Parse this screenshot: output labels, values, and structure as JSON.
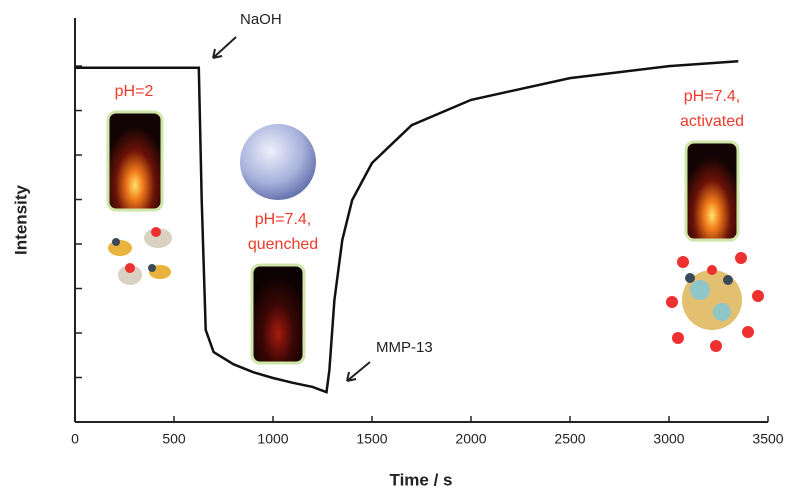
{
  "chart_data": {
    "type": "line",
    "x_label": "Time / s",
    "y_label": "Intensity",
    "x": [
      0,
      600,
      625,
      640,
      660,
      700,
      800,
      900,
      1000,
      1100,
      1200,
      1270,
      1285,
      1310,
      1350,
      1400,
      1500,
      1700,
      2000,
      2500,
      3000,
      3350
    ],
    "values": [
      7.96,
      7.96,
      7.96,
      4.99,
      2.07,
      1.57,
      1.3,
      1.12,
      0.99,
      0.88,
      0.79,
      0.67,
      1.17,
      2.74,
      4.09,
      4.99,
      5.82,
      6.67,
      7.24,
      7.73,
      8.0,
      8.11
    ],
    "color": "#111111",
    "xlim": [
      0,
      3500
    ],
    "xticks": [
      0,
      500,
      1000,
      1500,
      2000,
      2500,
      3000,
      3500
    ],
    "ylim": [
      0,
      9.08
    ],
    "yticks": [
      0,
      1,
      2,
      3,
      4,
      5,
      6,
      7,
      8
    ],
    "annotations": [
      [
        "NaOH"
      ],
      [
        "MMP-13"
      ],
      [
        "pH=2"
      ],
      [
        "pH=7.4,",
        "quenched"
      ],
      [
        "pH=7.4,",
        "activated"
      ]
    ]
  }
}
